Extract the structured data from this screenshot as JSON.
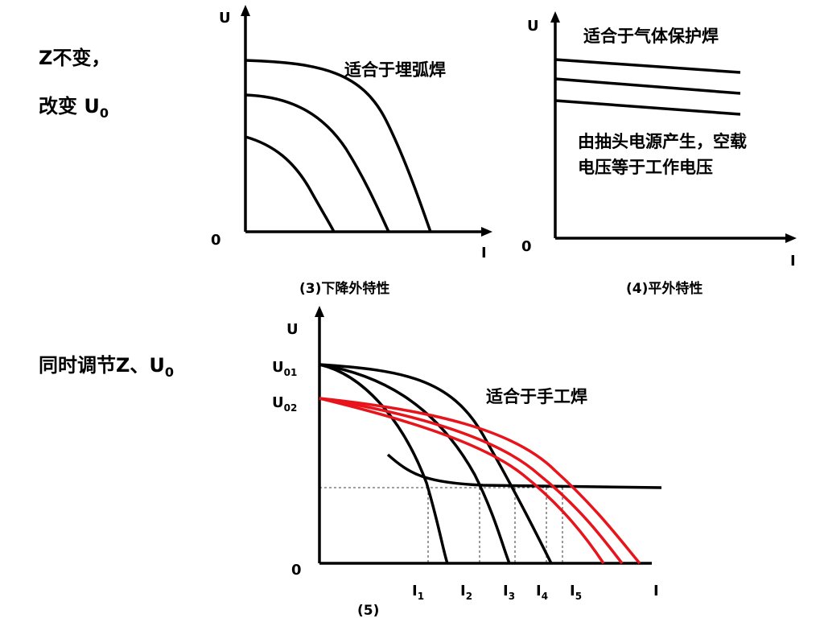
{
  "left_notes": {
    "note_1": "Z不变，",
    "note_2": {
      "main": "改变 U",
      "sub": "0"
    },
    "note_3": {
      "main": "同时调节Z、U",
      "sub": "0"
    }
  },
  "diagrams": [
    {
      "y_axis": "U",
      "origin": "0",
      "x_axis": "I",
      "annotation": "适合于埋弧焊",
      "caption": "(3)下降外特性"
    },
    {
      "y_axis": "U",
      "origin": "0",
      "x_axis": "I",
      "annotation": "适合于气体保护焊",
      "note_lines": [
        "由抽头电源产生，空载",
        "电压等于工作电压"
      ],
      "caption": "(4)平外特性"
    },
    {
      "y_axis": "U",
      "origin": "0",
      "x_axis": "I",
      "annotation": "适合于手工焊",
      "caption": "(5)",
      "y_labels": [
        {
          "main": "U",
          "sub": "01"
        },
        {
          "main": "U",
          "sub": "02"
        }
      ],
      "x_labels": [
        {
          "main": "I",
          "sub": "1"
        },
        {
          "main": "I",
          "sub": "2"
        },
        {
          "main": "I",
          "sub": "3"
        },
        {
          "main": "I",
          "sub": "4"
        },
        {
          "main": "I",
          "sub": "5"
        }
      ]
    }
  ]
}
